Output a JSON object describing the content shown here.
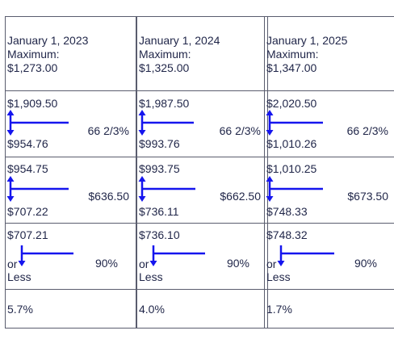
{
  "colors": {
    "arrow": "#1515ee",
    "text": "#1f2548",
    "border": "#5a5d6e"
  },
  "columns": [
    {
      "header": {
        "date": "January 1, 2023",
        "label": "Maximum:",
        "amount": "$1,273.00"
      },
      "band1": {
        "high": "$1,909.50",
        "low": "$954.76",
        "rate": "66 2/3%"
      },
      "band2": {
        "high": "$954.75",
        "low": "$707.22",
        "rate": "$636.50"
      },
      "band3": {
        "high": "$707.21",
        "or": "or",
        "less": "Less",
        "rate": "90%"
      },
      "percent": "5.7%"
    },
    {
      "header": {
        "date": "January 1, 2024",
        "label": "Maximum:",
        "amount": "$1,325.00"
      },
      "band1": {
        "high": "$1,987.50",
        "low": "$993.76",
        "rate": "66 2/3%"
      },
      "band2": {
        "high": "$993.75",
        "low": "$736.11",
        "rate": "$662.50"
      },
      "band3": {
        "high": "$736.10",
        "or": "or",
        "less": "Less",
        "rate": "90%"
      },
      "percent": "4.0%"
    },
    {
      "header": {
        "date": "January 1, 2025",
        "label": "Maximum:",
        "amount": "$1,347.00"
      },
      "band1": {
        "high": "$2,020.50",
        "low": "$1,010.26",
        "rate": "66 2/3%"
      },
      "band2": {
        "high": "$1,010.25",
        "low": "$748.33",
        "rate": "$673.50"
      },
      "band3": {
        "high": "$748.32",
        "or": "or",
        "less": "Less",
        "rate": "90%"
      },
      "percent": "1.7%"
    }
  ]
}
